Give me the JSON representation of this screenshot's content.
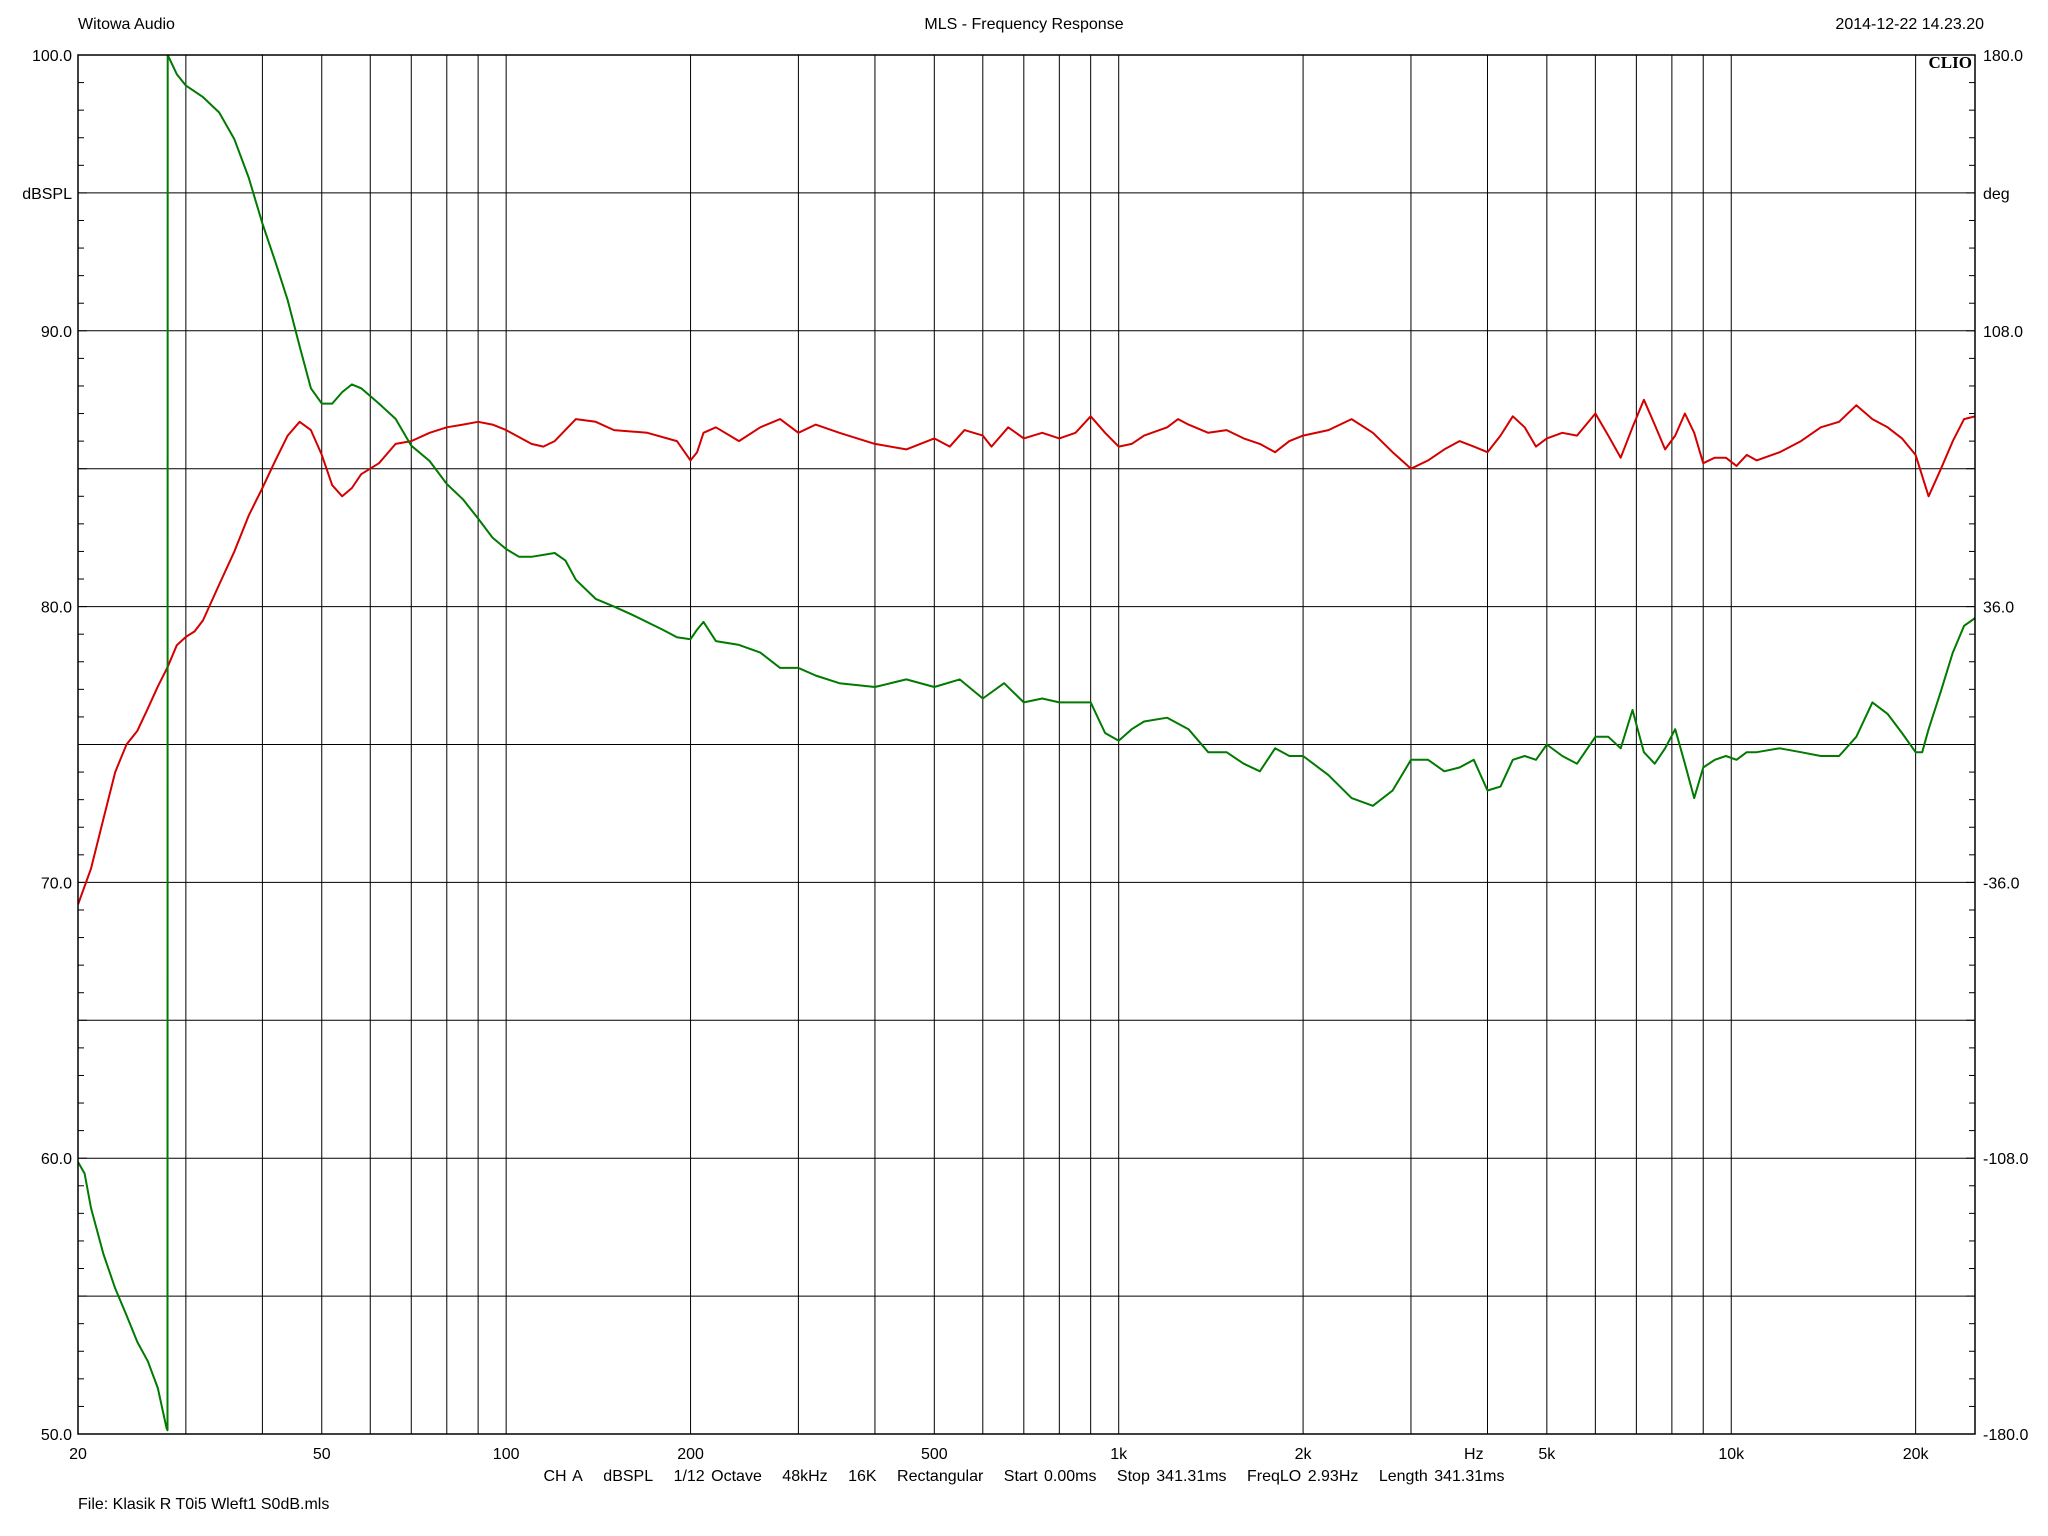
{
  "header": {
    "left": "Witowa Audio",
    "center": "MLS - Frequency Response",
    "right": "2014-12-22 14.23.20"
  },
  "logo": "CLIO",
  "footer": {
    "params": [
      "CH A",
      "dBSPL",
      "1/12 Octave",
      "48kHz",
      "16K",
      "Rectangular",
      "Start 0.00ms",
      "Stop 341.31ms",
      "FreqLO 2.93Hz",
      "Length 341.31ms"
    ],
    "file": "File: Klasik R T0i5 Wleft1 S0dB.mls"
  },
  "colors": {
    "magnitude": "#d40000",
    "phase": "#007a00",
    "grid": "#000000"
  },
  "chart_data": {
    "type": "line",
    "xscale": "log",
    "xlim": [
      20,
      25000
    ],
    "ylim_left": [
      50,
      100
    ],
    "ylim_right": [
      -180,
      180
    ],
    "left_unit": "dBSPL",
    "right_unit": "deg",
    "x_unit": "Hz",
    "x_ticks": [
      {
        "v": 20,
        "label": "20"
      },
      {
        "v": 50,
        "label": "50"
      },
      {
        "v": 100,
        "label": "100"
      },
      {
        "v": 200,
        "label": "200"
      },
      {
        "v": 500,
        "label": "500"
      },
      {
        "v": 1000,
        "label": "1k"
      },
      {
        "v": 2000,
        "label": "2k"
      },
      {
        "v": 3800,
        "label": "Hz"
      },
      {
        "v": 5000,
        "label": "5k"
      },
      {
        "v": 10000,
        "label": "10k"
      },
      {
        "v": 20000,
        "label": "20k"
      }
    ],
    "y_left_ticks": [
      {
        "v": 100,
        "label": "100.0"
      },
      {
        "v": 95,
        "label": "dBSPL"
      },
      {
        "v": 90,
        "label": "90.0"
      },
      {
        "v": 80,
        "label": "80.0"
      },
      {
        "v": 70,
        "label": "70.0"
      },
      {
        "v": 60,
        "label": "60.0"
      },
      {
        "v": 50,
        "label": "50.0"
      }
    ],
    "y_right_ticks": [
      {
        "v": 180,
        "label": "180.0"
      },
      {
        "v": 144,
        "label": "deg"
      },
      {
        "v": 108,
        "label": "108.0"
      },
      {
        "v": 36,
        "label": "36.0"
      },
      {
        "v": -36,
        "label": "-36.0"
      },
      {
        "v": -108,
        "label": "-108.0"
      },
      {
        "v": -180,
        "label": "-180.0"
      }
    ],
    "series": [
      {
        "axis": "left",
        "color": "#d40000",
        "points": [
          [
            20,
            69.2
          ],
          [
            21,
            70.5
          ],
          [
            22,
            72.3
          ],
          [
            23,
            74
          ],
          [
            24,
            75
          ],
          [
            25,
            75.5
          ],
          [
            26,
            76.3
          ],
          [
            27,
            77.1
          ],
          [
            28,
            77.8
          ],
          [
            29,
            78.6
          ],
          [
            30,
            78.9
          ],
          [
            31,
            79.1
          ],
          [
            32,
            79.5
          ],
          [
            34,
            80.8
          ],
          [
            36,
            82.0
          ],
          [
            38,
            83.3
          ],
          [
            40,
            84.3
          ],
          [
            42,
            85.3
          ],
          [
            44,
            86.2
          ],
          [
            46,
            86.7
          ],
          [
            48,
            86.4
          ],
          [
            50,
            85.5
          ],
          [
            52,
            84.4
          ],
          [
            54,
            84.0
          ],
          [
            56,
            84.3
          ],
          [
            58,
            84.8
          ],
          [
            62,
            85.2
          ],
          [
            66,
            85.9
          ],
          [
            70,
            86.0
          ],
          [
            75,
            86.3
          ],
          [
            80,
            86.5
          ],
          [
            85,
            86.6
          ],
          [
            90,
            86.7
          ],
          [
            95,
            86.6
          ],
          [
            100,
            86.4
          ],
          [
            110,
            85.9
          ],
          [
            115,
            85.8
          ],
          [
            120,
            86.0
          ],
          [
            130,
            86.8
          ],
          [
            140,
            86.7
          ],
          [
            150,
            86.4
          ],
          [
            170,
            86.3
          ],
          [
            190,
            86.0
          ],
          [
            200,
            85.3
          ],
          [
            205,
            85.6
          ],
          [
            210,
            86.3
          ],
          [
            220,
            86.5
          ],
          [
            240,
            86.0
          ],
          [
            260,
            86.5
          ],
          [
            280,
            86.8
          ],
          [
            300,
            86.3
          ],
          [
            320,
            86.6
          ],
          [
            350,
            86.3
          ],
          [
            400,
            85.9
          ],
          [
            450,
            85.7
          ],
          [
            500,
            86.1
          ],
          [
            530,
            85.8
          ],
          [
            560,
            86.4
          ],
          [
            600,
            86.2
          ],
          [
            620,
            85.8
          ],
          [
            660,
            86.5
          ],
          [
            700,
            86.1
          ],
          [
            750,
            86.3
          ],
          [
            800,
            86.1
          ],
          [
            850,
            86.3
          ],
          [
            900,
            86.9
          ],
          [
            950,
            86.3
          ],
          [
            1000,
            85.8
          ],
          [
            1050,
            85.9
          ],
          [
            1100,
            86.2
          ],
          [
            1200,
            86.5
          ],
          [
            1250,
            86.8
          ],
          [
            1300,
            86.6
          ],
          [
            1400,
            86.3
          ],
          [
            1500,
            86.4
          ],
          [
            1600,
            86.1
          ],
          [
            1700,
            85.9
          ],
          [
            1800,
            85.6
          ],
          [
            1900,
            86.0
          ],
          [
            2000,
            86.2
          ],
          [
            2200,
            86.4
          ],
          [
            2400,
            86.8
          ],
          [
            2600,
            86.3
          ],
          [
            2800,
            85.6
          ],
          [
            3000,
            85.0
          ],
          [
            3200,
            85.3
          ],
          [
            3400,
            85.7
          ],
          [
            3600,
            86.0
          ],
          [
            3800,
            85.8
          ],
          [
            4000,
            85.6
          ],
          [
            4200,
            86.2
          ],
          [
            4400,
            86.9
          ],
          [
            4600,
            86.5
          ],
          [
            4800,
            85.8
          ],
          [
            5000,
            86.1
          ],
          [
            5300,
            86.3
          ],
          [
            5600,
            86.2
          ],
          [
            6000,
            87.0
          ],
          [
            6300,
            86.2
          ],
          [
            6600,
            85.4
          ],
          [
            6900,
            86.5
          ],
          [
            7200,
            87.5
          ],
          [
            7500,
            86.6
          ],
          [
            7800,
            85.7
          ],
          [
            8100,
            86.2
          ],
          [
            8400,
            87.0
          ],
          [
            8700,
            86.3
          ],
          [
            9000,
            85.2
          ],
          [
            9400,
            85.4
          ],
          [
            9800,
            85.4
          ],
          [
            10200,
            85.1
          ],
          [
            10600,
            85.5
          ],
          [
            11000,
            85.3
          ],
          [
            12000,
            85.6
          ],
          [
            13000,
            86.0
          ],
          [
            14000,
            86.5
          ],
          [
            15000,
            86.7
          ],
          [
            16000,
            87.3
          ],
          [
            17000,
            86.8
          ],
          [
            18000,
            86.5
          ],
          [
            19000,
            86.1
          ],
          [
            20000,
            85.5
          ],
          [
            21000,
            84.0
          ],
          [
            22000,
            85.0
          ],
          [
            23000,
            86.0
          ],
          [
            24000,
            86.8
          ],
          [
            25000,
            86.9
          ]
        ]
      },
      {
        "axis": "right",
        "color": "#007a00",
        "points": [
          [
            20,
            -109
          ],
          [
            20.5,
            -112
          ],
          [
            21,
            -121
          ],
          [
            22,
            -133
          ],
          [
            23,
            -142
          ],
          [
            24,
            -149
          ],
          [
            25,
            -156
          ],
          [
            26,
            -161
          ],
          [
            27,
            -168
          ],
          [
            27.9,
            -178.5
          ],
          [
            28,
            -179
          ],
          [
            28.02,
            180
          ],
          [
            29,
            175
          ],
          [
            30,
            172
          ],
          [
            32,
            169
          ],
          [
            34,
            165
          ],
          [
            36,
            158
          ],
          [
            38,
            148
          ],
          [
            40,
            136
          ],
          [
            42,
            126
          ],
          [
            44,
            116
          ],
          [
            46,
            104
          ],
          [
            48,
            93
          ],
          [
            50,
            89
          ],
          [
            52,
            89
          ],
          [
            54,
            92
          ],
          [
            56,
            94
          ],
          [
            58,
            93
          ],
          [
            62,
            89
          ],
          [
            66,
            85
          ],
          [
            70,
            78
          ],
          [
            75,
            74
          ],
          [
            80,
            68
          ],
          [
            85,
            64
          ],
          [
            90,
            59
          ],
          [
            95,
            54
          ],
          [
            100,
            51
          ],
          [
            105,
            49
          ],
          [
            110,
            49
          ],
          [
            120,
            50
          ],
          [
            125,
            48
          ],
          [
            130,
            43
          ],
          [
            140,
            38
          ],
          [
            150,
            36
          ],
          [
            160,
            34
          ],
          [
            180,
            30
          ],
          [
            190,
            28
          ],
          [
            200,
            27.5
          ],
          [
            205,
            30
          ],
          [
            210,
            32
          ],
          [
            220,
            27
          ],
          [
            240,
            26
          ],
          [
            260,
            24
          ],
          [
            280,
            20
          ],
          [
            300,
            20
          ],
          [
            320,
            18
          ],
          [
            350,
            16
          ],
          [
            400,
            15
          ],
          [
            450,
            17
          ],
          [
            500,
            15
          ],
          [
            550,
            17
          ],
          [
            600,
            12
          ],
          [
            650,
            16
          ],
          [
            700,
            11
          ],
          [
            750,
            12
          ],
          [
            800,
            11
          ],
          [
            900,
            11
          ],
          [
            950,
            3
          ],
          [
            1000,
            1
          ],
          [
            1050,
            4
          ],
          [
            1100,
            6
          ],
          [
            1200,
            7
          ],
          [
            1300,
            4
          ],
          [
            1400,
            -2
          ],
          [
            1500,
            -2
          ],
          [
            1600,
            -5
          ],
          [
            1700,
            -7
          ],
          [
            1800,
            -1
          ],
          [
            1900,
            -3
          ],
          [
            2000,
            -3
          ],
          [
            2200,
            -8
          ],
          [
            2400,
            -14
          ],
          [
            2600,
            -16
          ],
          [
            2800,
            -12
          ],
          [
            3000,
            -4
          ],
          [
            3200,
            -4
          ],
          [
            3400,
            -7
          ],
          [
            3600,
            -6
          ],
          [
            3800,
            -4
          ],
          [
            4000,
            -12
          ],
          [
            4200,
            -11
          ],
          [
            4400,
            -4
          ],
          [
            4600,
            -3
          ],
          [
            4800,
            -4
          ],
          [
            5000,
            0
          ],
          [
            5300,
            -3
          ],
          [
            5600,
            -5
          ],
          [
            6000,
            2
          ],
          [
            6300,
            2
          ],
          [
            6600,
            -1
          ],
          [
            6900,
            9
          ],
          [
            7200,
            -2
          ],
          [
            7500,
            -5
          ],
          [
            7800,
            -1
          ],
          [
            8100,
            4
          ],
          [
            8400,
            -5
          ],
          [
            8700,
            -14
          ],
          [
            9000,
            -6
          ],
          [
            9400,
            -4
          ],
          [
            9800,
            -3
          ],
          [
            10200,
            -4
          ],
          [
            10600,
            -2
          ],
          [
            11000,
            -2
          ],
          [
            12000,
            -1
          ],
          [
            13000,
            -2
          ],
          [
            14000,
            -3
          ],
          [
            15000,
            -3
          ],
          [
            16000,
            2
          ],
          [
            17000,
            11
          ],
          [
            18000,
            8
          ],
          [
            19000,
            3
          ],
          [
            20000,
            -2
          ],
          [
            20500,
            -2
          ],
          [
            21000,
            4
          ],
          [
            22000,
            14
          ],
          [
            23000,
            24
          ],
          [
            24000,
            31
          ],
          [
            25000,
            33
          ]
        ]
      }
    ]
  }
}
